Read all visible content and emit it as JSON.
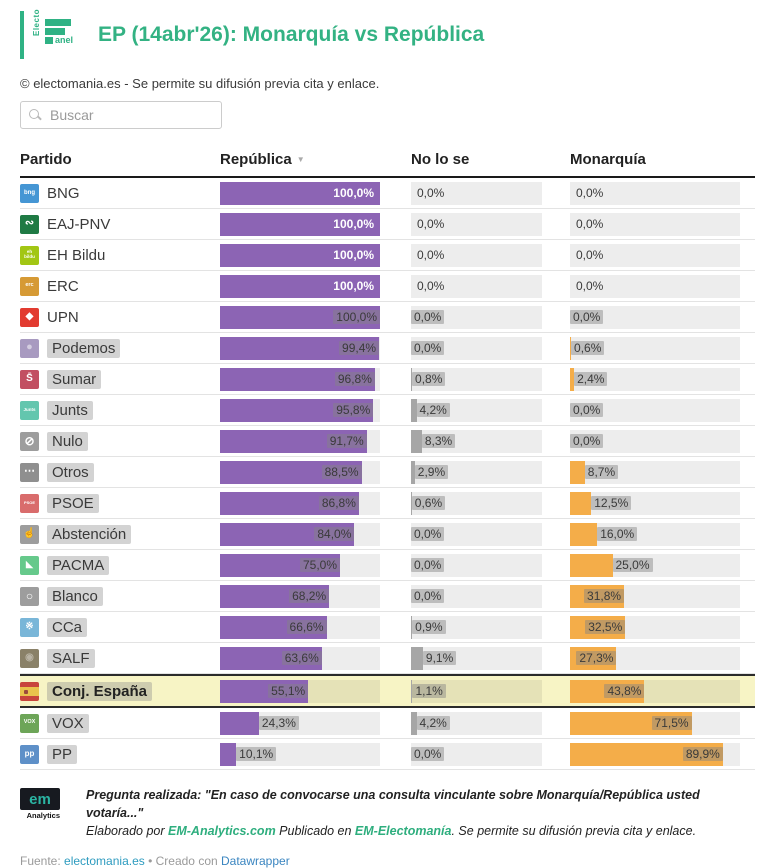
{
  "header": {
    "logo": {
      "vertical_text": "Electo",
      "suffix_text": "anel"
    },
    "title": "EP (14abr'26): Monarquía vs República",
    "copyright": "© electomania.es - Se permite su difusión previa cita y enlace."
  },
  "search": {
    "placeholder": "Buscar"
  },
  "table": {
    "columns": [
      "Partido",
      "República",
      "No lo se",
      "Monarquía"
    ],
    "sort_icon": "▼",
    "rows": [
      {
        "icon_bg": "#4596d4",
        "glyph": "bng",
        "glyph_size": 6,
        "name_chip": false,
        "value_chips": false,
        "selected": false
      },
      {
        "icon_bg": "#1f7a44",
        "glyph": "∾",
        "glyph_size": 11,
        "name_chip": false,
        "value_chips": false,
        "selected": false
      },
      {
        "icon_bg": "#a2c614",
        "glyph": "eh\nbildu",
        "glyph_size": 4.5,
        "name_chip": false,
        "value_chips": false,
        "selected": false
      },
      {
        "icon_bg": "#d69a35",
        "glyph": "erc",
        "glyph_size": 5.5,
        "name_chip": false,
        "value_chips": false,
        "selected": false
      },
      {
        "icon_bg": "#e23b30",
        "glyph": "◆",
        "glyph_size": 10,
        "name_chip": false,
        "value_chips": true,
        "selected": false
      },
      {
        "icon_bg": "#a89ac0",
        "glyph": "●",
        "glyph_size": 11,
        "glyph_color": "rgba(255,255,255,0.5)",
        "name_chip": true,
        "value_chips": true,
        "selected": false
      },
      {
        "icon_bg": "#c24f62",
        "glyph": "S̄",
        "glyph_size": 10,
        "name_chip": true,
        "value_chips": true,
        "selected": false
      },
      {
        "icon_bg": "#63c6ae",
        "glyph": "Junts",
        "glyph_size": 4.5,
        "name_chip": true,
        "value_chips": true,
        "selected": false
      },
      {
        "icon_bg": "#9d9d9d",
        "glyph": "⊘",
        "glyph_size": 12,
        "name_chip": true,
        "value_chips": true,
        "selected": false
      },
      {
        "icon_bg": "#8f8f8f",
        "glyph": "⋯",
        "glyph_size": 11,
        "name_chip": true,
        "value_chips": true,
        "selected": false
      },
      {
        "icon_bg": "#d96c6c",
        "glyph": "PSOE",
        "glyph_size": 4,
        "name_chip": true,
        "value_chips": true,
        "selected": false
      },
      {
        "icon_bg": "#9d9d9d",
        "glyph": "☝",
        "glyph_size": 10,
        "name_chip": true,
        "value_chips": true,
        "selected": false
      },
      {
        "icon_bg": "#66c98b",
        "glyph": "◣",
        "glyph_size": 9,
        "name_chip": true,
        "value_chips": true,
        "selected": false
      },
      {
        "icon_bg": "#9d9d9d",
        "glyph": "○",
        "glyph_size": 12,
        "name_chip": true,
        "value_chips": true,
        "selected": false
      },
      {
        "icon_bg": "#79b6d8",
        "glyph": "※",
        "glyph_size": 10,
        "name_chip": true,
        "value_chips": true,
        "selected": false
      },
      {
        "icon_bg": "#8a8168",
        "glyph": "◉",
        "glyph_size": 10,
        "glyph_color": "rgba(255,255,255,0.4)",
        "name_chip": true,
        "value_chips": true,
        "selected": false
      },
      {
        "icon_type": "flag_es",
        "name_chip": true,
        "value_chips": true,
        "selected": true
      },
      {
        "icon_bg": "#6da558",
        "glyph": "VOX",
        "glyph_size": 5.5,
        "name_chip": true,
        "value_chips": true,
        "selected": false
      },
      {
        "icon_bg": "#5e90c8",
        "glyph": "pp",
        "glyph_size": 8,
        "name_chip": true,
        "value_chips": true,
        "selected": false
      }
    ]
  },
  "chart_data": {
    "type": "bar",
    "orientation": "horizontal",
    "title": "EP (14abr'26): Monarquía vs República",
    "unit": "%",
    "xlim": [
      0,
      100
    ],
    "sorted_by": "República",
    "highlighted_category": "Conj. España",
    "categories": [
      "BNG",
      "EAJ-PNV",
      "EH Bildu",
      "ERC",
      "UPN",
      "Podemos",
      "Sumar",
      "Junts",
      "Nulo",
      "Otros",
      "PSOE",
      "Abstención",
      "PACMA",
      "Blanco",
      "CCa",
      "SALF",
      "Conj. España",
      "VOX",
      "PP"
    ],
    "series": [
      {
        "name": "República",
        "color": "#8c64b4",
        "values": [
          100.0,
          100.0,
          100.0,
          100.0,
          100.0,
          99.4,
          96.8,
          95.8,
          91.7,
          88.5,
          86.8,
          84.0,
          75.0,
          68.2,
          66.6,
          63.6,
          55.1,
          24.3,
          10.1
        ]
      },
      {
        "name": "No lo se",
        "color": "#a6a6a6",
        "values": [
          0.0,
          0.0,
          0.0,
          0.0,
          0.0,
          0.0,
          0.8,
          4.2,
          8.3,
          2.9,
          0.6,
          0.0,
          0.0,
          0.0,
          0.9,
          9.1,
          1.1,
          4.2,
          0.0
        ]
      },
      {
        "name": "Monarquía",
        "color": "#f4ad49",
        "values": [
          0.0,
          0.0,
          0.0,
          0.0,
          0.0,
          0.6,
          2.4,
          0.0,
          0.0,
          8.7,
          12.5,
          16.0,
          25.0,
          31.8,
          32.5,
          27.3,
          43.8,
          71.5,
          89.9
        ]
      }
    ]
  },
  "footer": {
    "em_logo": "em",
    "em_analytics": "Analytics",
    "line1_bold": "Pregunta realizada: \"En caso de convocarse una consulta vinculante sobre Monarquía/República usted votaría...\"",
    "line2_prefix": "Elaborado por ",
    "line2_link1": "EM-Analytics.com",
    "line2_mid": " Publicado en ",
    "line2_link2": "EM-Electomanía",
    "line2_suffix": ". Se permite su difusión previa cita y enlace.",
    "fuente_label": "Fuente: ",
    "fuente_link": "electomania.es",
    "separator": " • ",
    "creado_label": "Creado con ",
    "creado_link": "Datawrapper"
  }
}
